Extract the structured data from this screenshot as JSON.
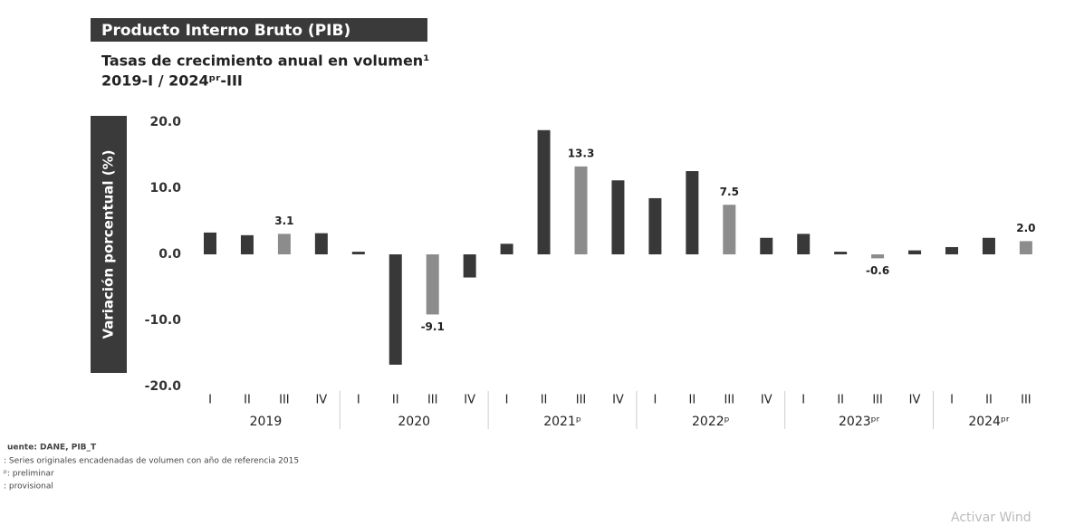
{
  "chart_data": {
    "type": "bar",
    "title": "Producto Interno Bruto (PIB)",
    "subtitle": [
      "Tasas de crecimiento anual en volumen¹",
      "2019-I  / 2024ᵖʳ-III"
    ],
    "ylabel": "Variación porcentual (%)",
    "categories": [
      "I",
      "II",
      "III",
      "IV",
      "I",
      "II",
      "III",
      "IV",
      "I",
      "II",
      "III",
      "IV",
      "I",
      "II",
      "III",
      "IV",
      "I",
      "II",
      "III",
      "IV",
      "I",
      "II",
      "III"
    ],
    "year_labels": [
      "2019",
      "2020",
      "2021ᵖ",
      "2022ᵖ",
      "2023ᵖʳ",
      "2024ᵖʳ"
    ],
    "values": [
      3.3,
      2.9,
      3.1,
      3.2,
      0.4,
      -16.7,
      -9.1,
      -3.5,
      1.6,
      18.8,
      13.3,
      11.2,
      8.5,
      12.6,
      7.5,
      2.5,
      3.1,
      0.4,
      -0.6,
      0.6,
      1.1,
      2.5,
      2.0
    ],
    "value_labels": [
      null,
      null,
      "3.1",
      null,
      null,
      null,
      "-9.1",
      null,
      null,
      null,
      "13.3",
      null,
      null,
      null,
      "7.5",
      null,
      null,
      null,
      "-0.6",
      null,
      null,
      null,
      "2.0"
    ],
    "color": "#383838",
    "highlight_color": "#8c8c8c",
    "ylim": [
      -20,
      20
    ],
    "yticks": [
      {
        "value": 20,
        "label": "20.0"
      },
      {
        "value": 10,
        "label": "10.0"
      },
      {
        "value": 0,
        "label": "0.0"
      },
      {
        "value": -10,
        "label": "-10.0"
      },
      {
        "value": -20,
        "label": "-20.0"
      }
    ],
    "notes": [
      "uente: DANE, PIB_T",
      ": Series originales encadenadas de volumen con año de referencia 2015",
      "ᵖ: preliminar",
      ": provisional"
    ],
    "watermark": "Activar Wind"
  }
}
